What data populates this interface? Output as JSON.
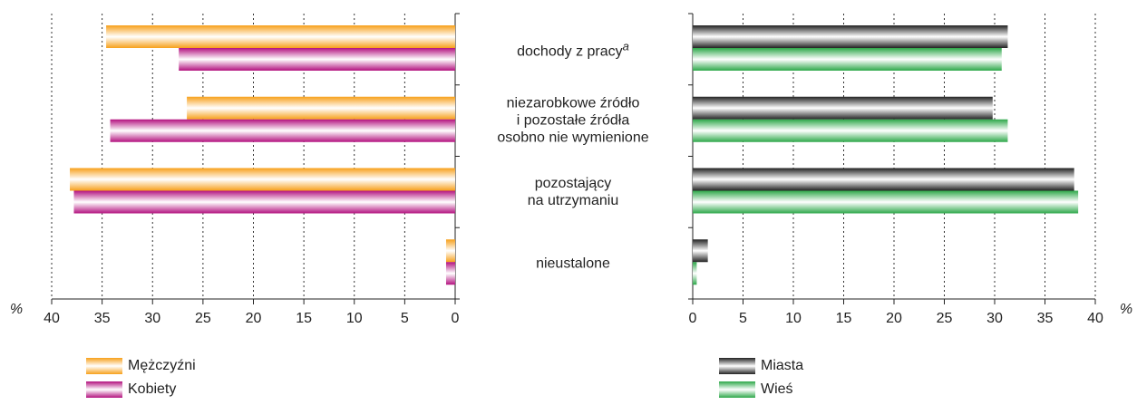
{
  "chart_data": [
    {
      "type": "bar",
      "orientation": "horizontal",
      "reversed": true,
      "categories": [
        "dochody z pracy",
        "niezarobkowe źródło\ni pozostałe źródła\nosobno nie wymienione",
        "pozostający\nna utrzymaniu",
        "nieustalone"
      ],
      "category_superscripts": [
        "a",
        null,
        null,
        null
      ],
      "unit": "%",
      "series": [
        {
          "name": "Mężczyźni",
          "color": "#f7a01a",
          "values": [
            34.6,
            26.6,
            38.2,
            0.9
          ]
        },
        {
          "name": "Kobiety",
          "color": "#b3127f",
          "values": [
            27.4,
            34.2,
            37.8,
            0.9
          ]
        }
      ],
      "xlim": [
        0,
        40
      ],
      "xticks": [
        0,
        5,
        10,
        15,
        20,
        25,
        30,
        35,
        40
      ],
      "grid": true
    },
    {
      "type": "bar",
      "orientation": "horizontal",
      "reversed": false,
      "unit": "%",
      "series": [
        {
          "name": "Miasta",
          "color": "#222222",
          "values": [
            31.3,
            29.8,
            37.9,
            1.5
          ]
        },
        {
          "name": "Wieś",
          "color": "#2ea84a",
          "values": [
            30.7,
            31.3,
            38.3,
            0.4
          ]
        }
      ],
      "xlim": [
        0,
        40
      ],
      "xticks": [
        0,
        5,
        10,
        15,
        20,
        25,
        30,
        35,
        40
      ],
      "grid": true
    }
  ]
}
